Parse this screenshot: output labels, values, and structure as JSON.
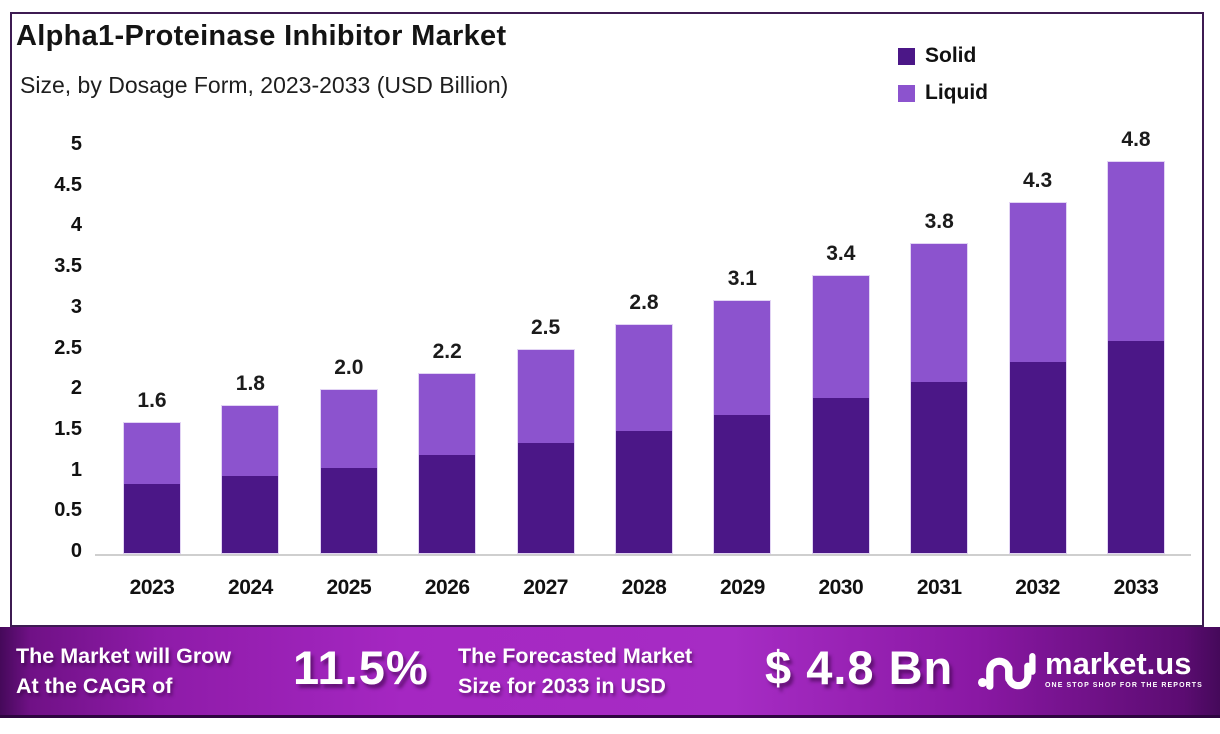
{
  "header": {
    "title": "Alpha1-Proteinase Inhibitor Market",
    "subtitle": "Size, by Dosage Form, 2023-2033 (USD Billion)"
  },
  "legend": [
    {
      "label": "Solid",
      "color": "#4b1787"
    },
    {
      "label": "Liquid",
      "color": "#8c53ce"
    }
  ],
  "chart_data": {
    "type": "bar",
    "stacked": true,
    "title": "Alpha1-Proteinase Inhibitor Market Size, by Dosage Form, 2023-2033 (USD Billion)",
    "categories": [
      "2023",
      "2024",
      "2025",
      "2026",
      "2027",
      "2028",
      "2029",
      "2030",
      "2031",
      "2032",
      "2033"
    ],
    "series": [
      {
        "name": "Solid",
        "color": "#4b1787",
        "values": [
          0.85,
          0.95,
          1.05,
          1.2,
          1.35,
          1.5,
          1.7,
          1.9,
          2.1,
          2.35,
          2.6
        ]
      },
      {
        "name": "Liquid",
        "color": "#8c53ce",
        "values": [
          0.75,
          0.85,
          0.95,
          1.0,
          1.15,
          1.3,
          1.4,
          1.5,
          1.7,
          1.95,
          2.2
        ]
      }
    ],
    "totals_labels": [
      "1.6",
      "1.8",
      "2.0",
      "2.2",
      "2.5",
      "2.8",
      "3.1",
      "3.4",
      "3.8",
      "4.3",
      "4.8"
    ],
    "xlabel": "",
    "ylabel": "",
    "ylim": [
      0,
      5
    ],
    "ytick_labels": [
      "5",
      "4.5",
      "4",
      "3.5",
      "3",
      "2.5",
      "2",
      "1.5",
      "1",
      "0.5",
      "0"
    ],
    "grid": false,
    "legend_position": "top-right"
  },
  "banner": {
    "growth_text_line1": "The Market will Grow",
    "growth_text_line2": "At the CAGR of",
    "cagr_value": "11.5%",
    "forecast_text_line1": "The Forecasted Market",
    "forecast_text_line2": "Size for 2033 in USD",
    "forecast_value": "$ 4.8 Bn",
    "brand": {
      "name": "market.us",
      "tagline": "ONE STOP SHOP FOR THE REPORTS"
    }
  },
  "colors": {
    "solid_bar": "#4b1787",
    "liquid_bar": "#8c53ce",
    "banner_purple": "#a527c2",
    "frame_border": "#3d1b52",
    "axis_line": "#cfcfcf",
    "text_dark": "#141414",
    "banner_text": "#ffffff"
  }
}
